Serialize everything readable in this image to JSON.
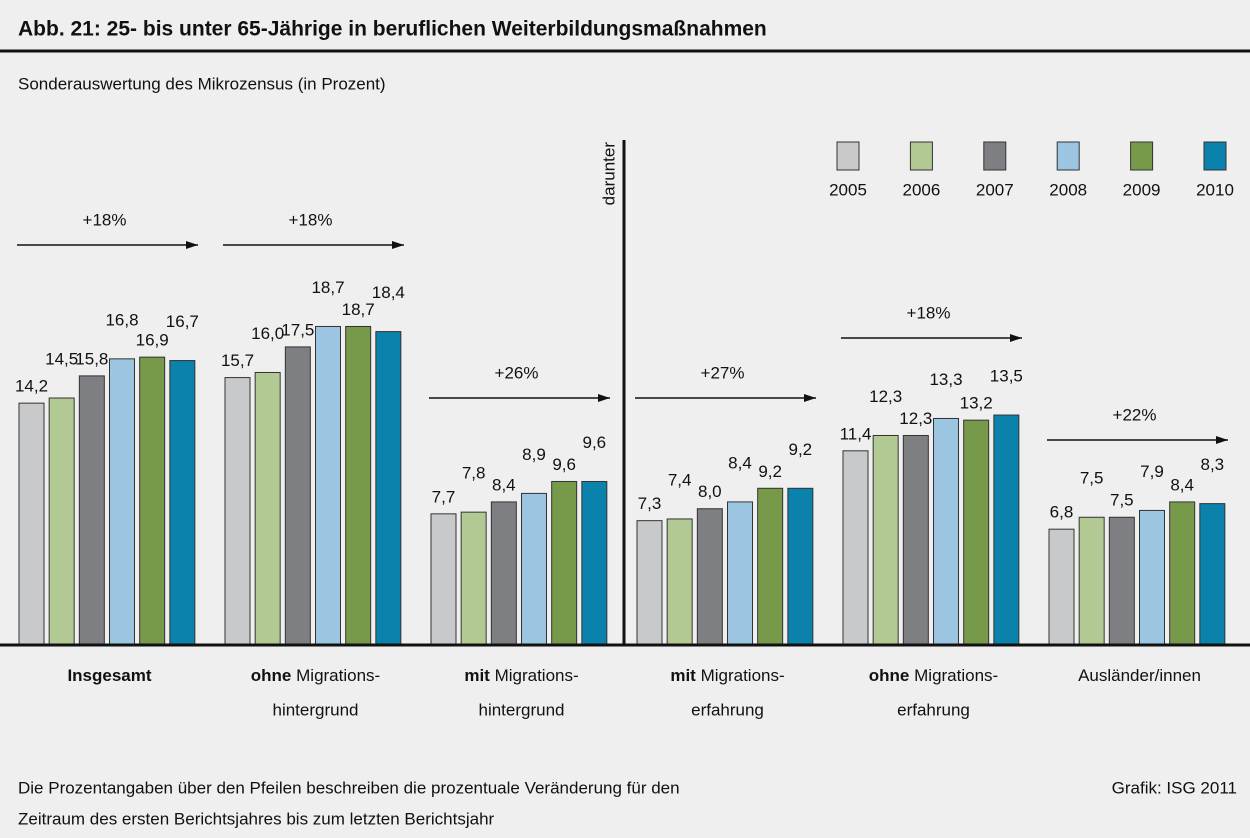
{
  "chart_data": {
    "type": "bar",
    "title": "Abb. 21: 25- bis unter 65-Jährige in beruflichen Weiterbildungsmaßnahmen",
    "subtitle": "Sonderauswertung des Mikrozensus (in Prozent)",
    "categories": [
      {
        "bold": "Insgesamt"
      },
      {
        "bold": "ohne",
        "text": "Migrations-",
        "line2": "hintergrund"
      },
      {
        "bold": "mit",
        "text": "Migrations-",
        "line2": "hintergrund"
      },
      {
        "bold": "mit",
        "text": "Migrations-",
        "line2": "erfahrung"
      },
      {
        "bold": "ohne",
        "text": "Migrations-",
        "line2": "erfahrung"
      },
      {
        "text": "Ausländer/innen"
      }
    ],
    "series": [
      {
        "name": "2005",
        "color": "#c8c9cb",
        "values": [
          14.2,
          15.7,
          7.7,
          7.3,
          11.4,
          6.8
        ],
        "value_labels": [
          "14,2",
          "15,7",
          "7,7",
          "7,3",
          "11,4",
          "6,8"
        ]
      },
      {
        "name": "2006",
        "color": "#b3c994",
        "values": [
          14.5,
          16.0,
          7.8,
          7.4,
          12.3,
          7.5
        ],
        "value_labels": [
          "14,5",
          "16,0",
          "7,8",
          "7,4",
          "12,3",
          "7,5"
        ]
      },
      {
        "name": "2007",
        "color": "#7e7f83",
        "values": [
          15.8,
          17.5,
          8.4,
          8.0,
          12.3,
          7.5
        ],
        "value_labels": [
          "15,8",
          "17,5",
          "8,4",
          "8,0",
          "12,3",
          "7,5"
        ]
      },
      {
        "name": "2008",
        "color": "#9cc5e1",
        "values": [
          16.8,
          18.7,
          8.9,
          8.4,
          13.3,
          7.9
        ],
        "value_labels": [
          "16,8",
          "18,7",
          "8,9",
          "8,4",
          "13,3",
          "7,9"
        ]
      },
      {
        "name": "2009",
        "color": "#77994a",
        "values": [
          16.9,
          18.7,
          9.6,
          9.2,
          13.2,
          8.4
        ],
        "value_labels": [
          "16,9",
          "18,7",
          "9,6",
          "9,2",
          "13,2",
          "8,4"
        ]
      },
      {
        "name": "2010",
        "color": "#0a82ac",
        "values": [
          16.7,
          18.4,
          9.6,
          9.2,
          13.5,
          8.3
        ],
        "value_labels": [
          "16,7",
          "18,4",
          "9,6",
          "9,2",
          "13,5",
          "8,3"
        ]
      }
    ],
    "annotations": [
      "+18%",
      "+18%",
      "+26%",
      "+27%",
      "+18%",
      "+22%"
    ],
    "separator_label": "darunter",
    "ylim": [
      0,
      30
    ],
    "legend": "top-right",
    "note": [
      "Die Prozentangaben über den Pfeilen beschreiben die prozentuale Veränderung für den",
      "Zeitraum des ersten Berichtsjahres bis zum letzten Berichtsjahr"
    ],
    "source": "Grafik: ISG 2011"
  }
}
